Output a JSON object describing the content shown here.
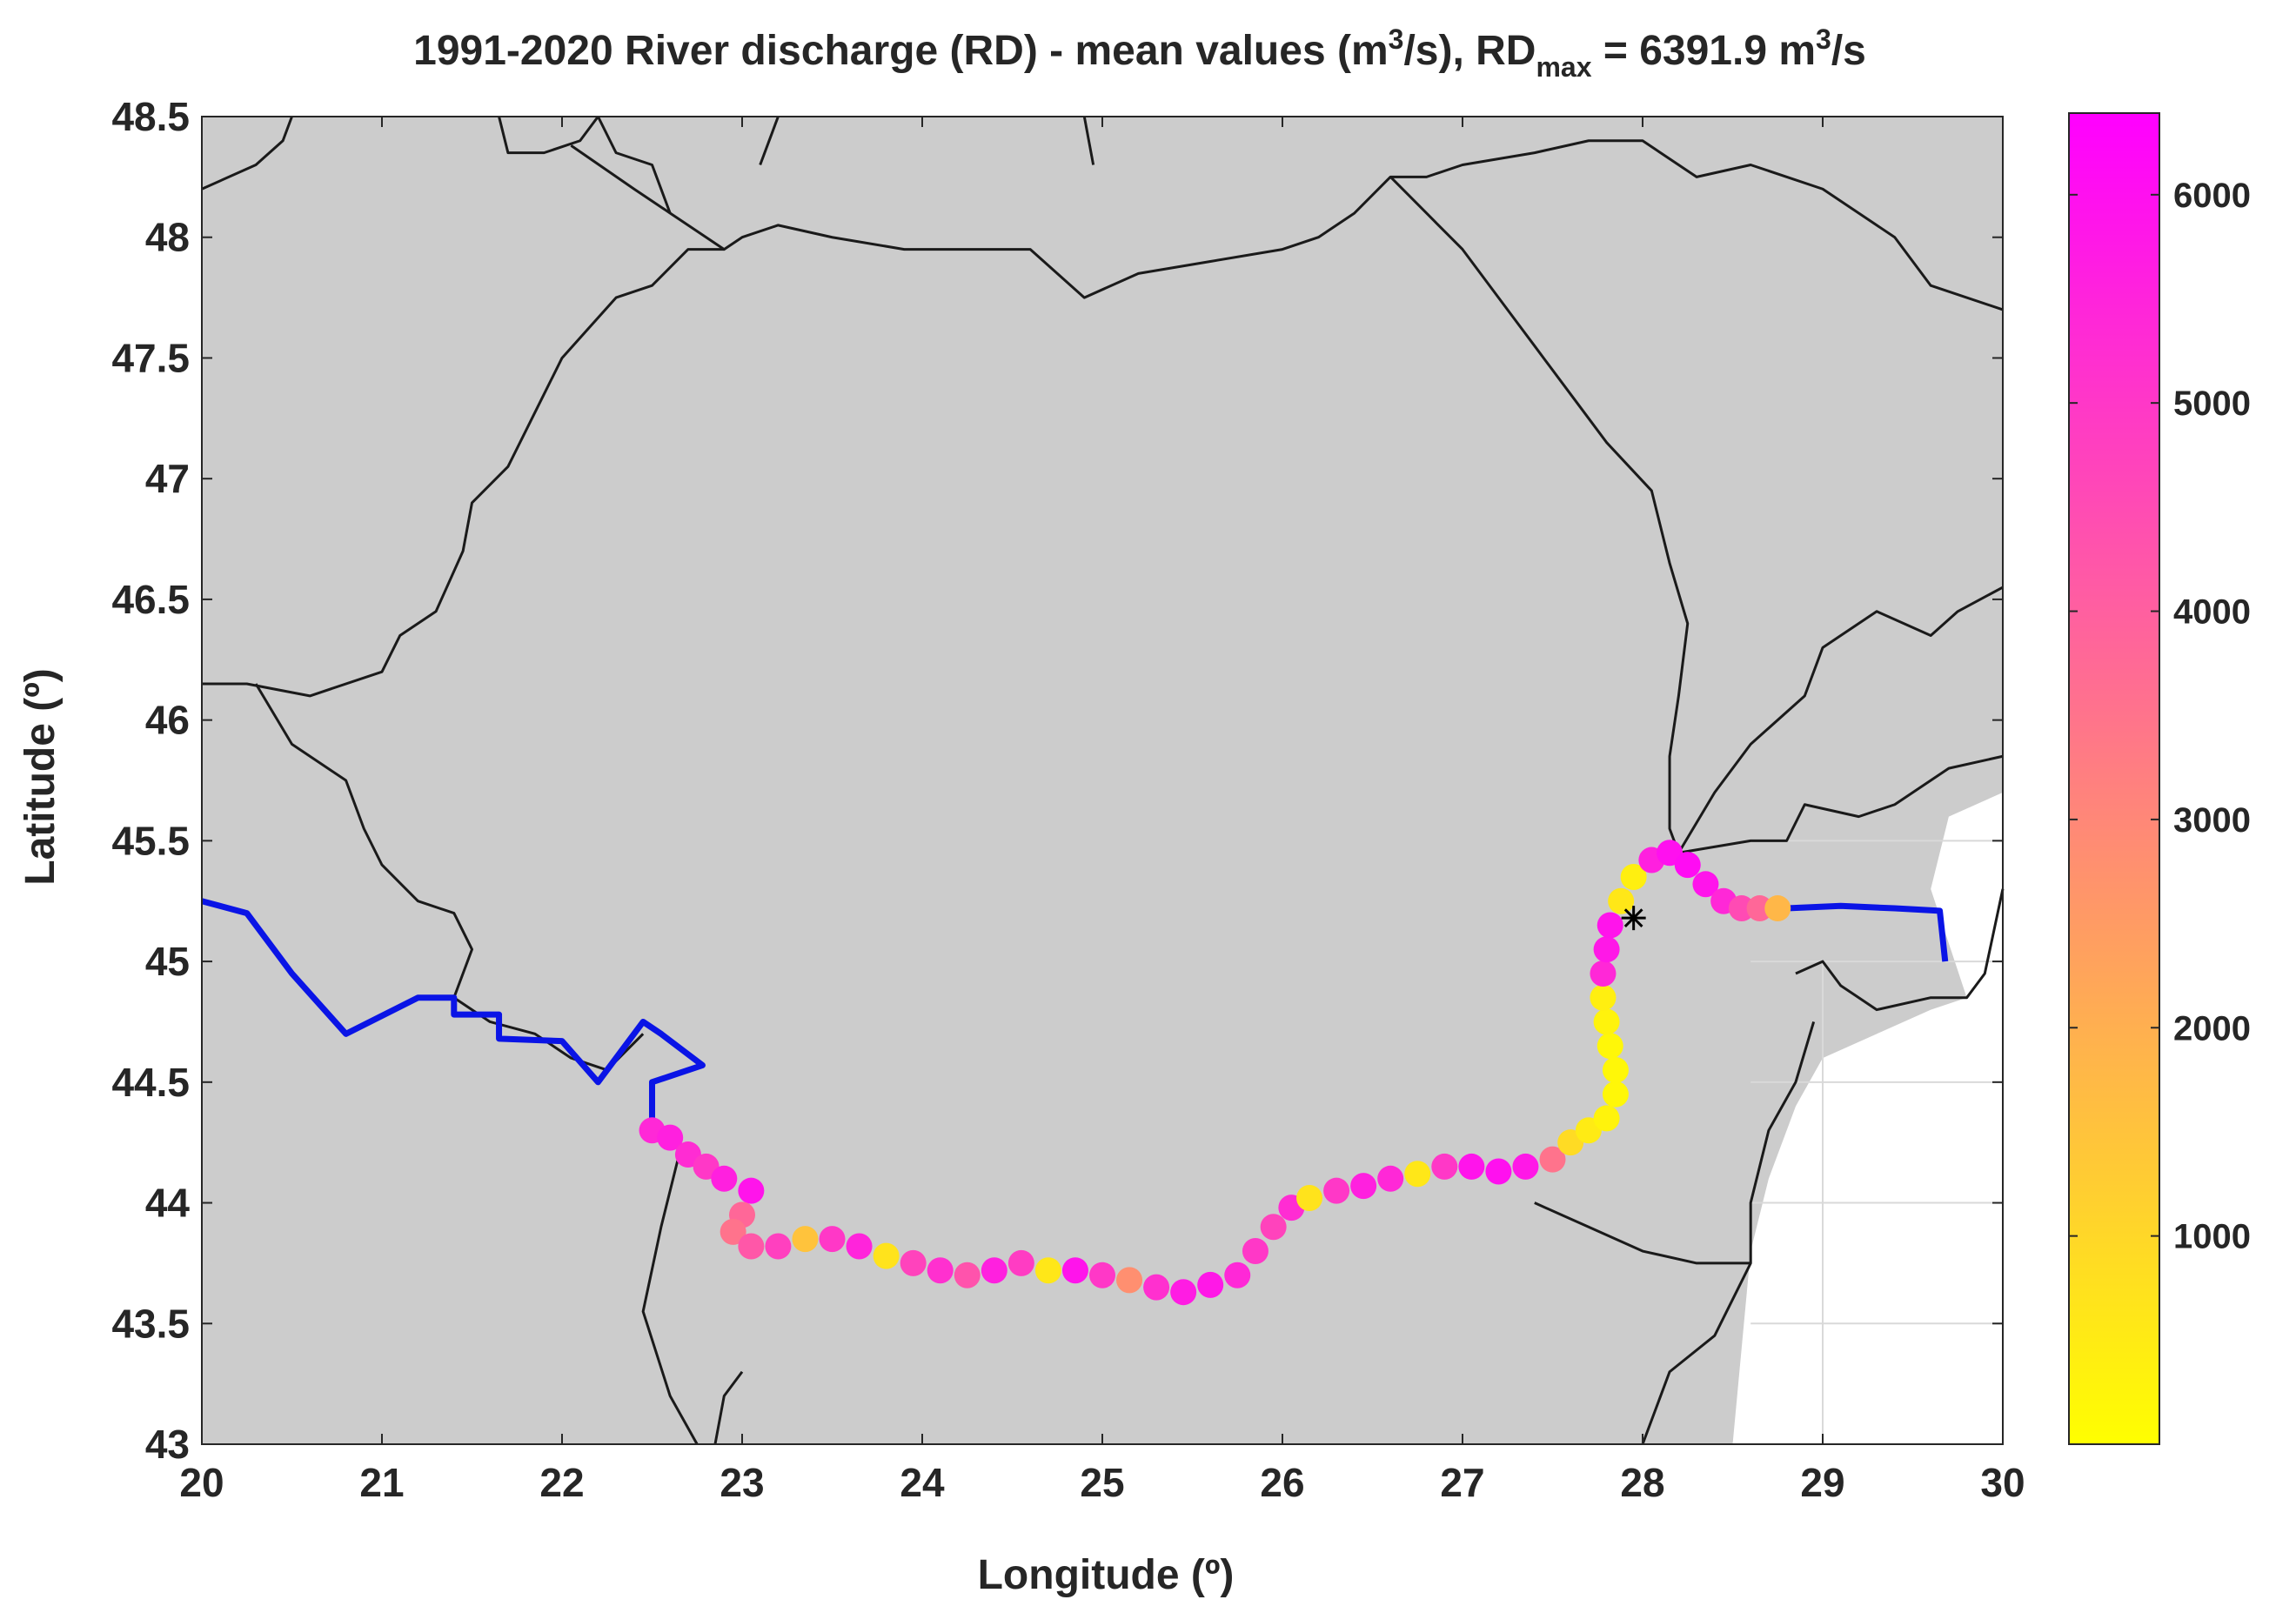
{
  "title": {
    "main": "1991-2020 River discharge (RD) - mean values (m",
    "sup1": "3",
    "mid": "/s), RD",
    "sub": "max",
    "eq": " = 6391.9 m",
    "sup2": "3",
    "tail": "/s"
  },
  "colors": {
    "land": "#cccccc",
    "sea": "#ffffff",
    "border": "#1a1a1a",
    "river_no_data": "#0a14e6",
    "axis_text": "#262626",
    "colormap_low": "#ffff00",
    "colormap_high": "#ff00ff"
  },
  "chart_data": {
    "type": "scatter",
    "xlabel": "Longitude (º)",
    "ylabel": "Latitude (º)",
    "xlim": [
      20,
      30
    ],
    "ylim": [
      43,
      48.5
    ],
    "xticks": [
      "20",
      "21",
      "22",
      "23",
      "24",
      "25",
      "26",
      "27",
      "28",
      "29",
      "30"
    ],
    "yticks": [
      "43",
      "43.5",
      "44",
      "44.5",
      "45",
      "45.5",
      "46",
      "46.5",
      "47",
      "47.5",
      "48",
      "48.5"
    ],
    "colorbar": {
      "min": 0,
      "max": 6391.9,
      "ticks": [
        1000,
        2000,
        3000,
        4000,
        5000,
        6000
      ],
      "ticklabels": [
        "1000",
        "2000",
        "3000",
        "4000",
        "5000",
        "6000"
      ]
    },
    "marker": {
      "symbol": "asterisk",
      "lon": 27.95,
      "lat": 45.18
    },
    "borders": [
      [
        [
          20.0,
          48.2
        ],
        [
          20.3,
          48.3
        ],
        [
          20.45,
          48.4
        ],
        [
          20.5,
          48.5
        ]
      ],
      [
        [
          21.65,
          48.5
        ],
        [
          21.7,
          48.35
        ],
        [
          21.9,
          48.35
        ],
        [
          22.1,
          48.4
        ],
        [
          22.2,
          48.5
        ]
      ],
      [
        [
          22.05,
          48.38
        ],
        [
          22.4,
          48.2
        ],
        [
          22.6,
          48.1
        ],
        [
          22.9,
          47.95
        ],
        [
          23.0,
          48.0
        ],
        [
          23.2,
          48.05
        ],
        [
          23.5,
          48.0
        ],
        [
          23.9,
          47.95
        ],
        [
          24.2,
          47.95
        ],
        [
          24.6,
          47.95
        ],
        [
          24.9,
          47.75
        ],
        [
          25.2,
          47.85
        ],
        [
          25.6,
          47.9
        ],
        [
          26.0,
          47.95
        ],
        [
          26.2,
          48.0
        ],
        [
          26.4,
          48.1
        ],
        [
          26.6,
          48.25
        ],
        [
          26.8,
          48.25
        ],
        [
          27.0,
          48.3
        ],
        [
          27.4,
          48.35
        ],
        [
          27.7,
          48.4
        ],
        [
          28.0,
          48.4
        ],
        [
          28.3,
          48.25
        ],
        [
          28.6,
          48.3
        ],
        [
          29.0,
          48.2
        ],
        [
          29.4,
          48.0
        ],
        [
          29.6,
          47.8
        ],
        [
          30.0,
          47.7
        ]
      ],
      [
        [
          22.2,
          48.5
        ],
        [
          22.3,
          48.35
        ],
        [
          22.5,
          48.3
        ],
        [
          22.6,
          48.1
        ]
      ],
      [
        [
          26.6,
          48.25
        ],
        [
          26.8,
          48.1
        ],
        [
          27.0,
          47.95
        ],
        [
          27.2,
          47.75
        ],
        [
          27.4,
          47.55
        ],
        [
          27.6,
          47.35
        ],
        [
          27.8,
          47.15
        ],
        [
          28.05,
          46.95
        ],
        [
          28.15,
          46.65
        ],
        [
          28.25,
          46.4
        ],
        [
          28.2,
          46.1
        ],
        [
          28.15,
          45.85
        ],
        [
          28.15,
          45.55
        ],
        [
          28.2,
          45.45
        ]
      ],
      [
        [
          20.0,
          46.15
        ],
        [
          20.25,
          46.15
        ],
        [
          20.6,
          46.1
        ],
        [
          21.0,
          46.2
        ],
        [
          21.1,
          46.35
        ],
        [
          21.3,
          46.45
        ],
        [
          21.45,
          46.7
        ],
        [
          21.5,
          46.9
        ],
        [
          21.7,
          47.05
        ],
        [
          21.9,
          47.35
        ],
        [
          22.0,
          47.5
        ],
        [
          22.3,
          47.75
        ],
        [
          22.5,
          47.8
        ],
        [
          22.7,
          47.95
        ],
        [
          22.9,
          47.95
        ]
      ],
      [
        [
          20.3,
          46.15
        ],
        [
          20.5,
          45.9
        ],
        [
          20.8,
          45.75
        ],
        [
          20.9,
          45.55
        ],
        [
          21.0,
          45.4
        ],
        [
          21.2,
          45.25
        ],
        [
          21.4,
          45.2
        ],
        [
          21.5,
          45.05
        ],
        [
          21.4,
          44.85
        ],
        [
          21.6,
          44.75
        ],
        [
          21.85,
          44.7
        ],
        [
          22.05,
          44.6
        ],
        [
          22.25,
          44.55
        ],
        [
          22.45,
          44.7
        ]
      ],
      [
        [
          23.2,
          48.5
        ],
        [
          23.1,
          48.3
        ]
      ],
      [
        [
          24.9,
          48.5
        ],
        [
          24.95,
          48.3
        ]
      ],
      [
        [
          28.2,
          45.45
        ],
        [
          28.6,
          45.5
        ],
        [
          28.8,
          45.5
        ],
        [
          28.9,
          45.65
        ],
        [
          29.2,
          45.6
        ],
        [
          29.4,
          45.65
        ],
        [
          29.6,
          45.75
        ],
        [
          29.7,
          45.8
        ],
        [
          30.0,
          45.85
        ]
      ],
      [
        [
          28.2,
          45.45
        ],
        [
          28.4,
          45.7
        ],
        [
          28.6,
          45.9
        ],
        [
          28.9,
          46.1
        ],
        [
          29.0,
          46.3
        ],
        [
          29.3,
          46.45
        ],
        [
          29.6,
          46.35
        ],
        [
          29.75,
          46.45
        ],
        [
          30.0,
          46.55
        ]
      ],
      [
        [
          28.85,
          44.95
        ],
        [
          29.0,
          45.0
        ],
        [
          29.1,
          44.9
        ],
        [
          29.3,
          44.8
        ],
        [
          29.6,
          44.85
        ],
        [
          29.8,
          44.85
        ],
        [
          29.9,
          44.95
        ],
        [
          30.0,
          45.3
        ]
      ],
      [
        [
          28.95,
          44.75
        ],
        [
          28.85,
          44.5
        ],
        [
          28.7,
          44.3
        ],
        [
          28.6,
          44.0
        ],
        [
          28.6,
          43.75
        ],
        [
          28.4,
          43.45
        ],
        [
          28.15,
          43.3
        ],
        [
          28.0,
          43.0
        ]
      ],
      [
        [
          27.4,
          44.0
        ],
        [
          27.7,
          43.9
        ],
        [
          28.0,
          43.8
        ],
        [
          28.3,
          43.75
        ],
        [
          28.6,
          43.75
        ]
      ],
      [
        [
          22.65,
          44.2
        ],
        [
          22.55,
          43.9
        ],
        [
          22.45,
          43.55
        ],
        [
          22.6,
          43.2
        ],
        [
          22.75,
          43.0
        ]
      ],
      [
        [
          23.0,
          43.3
        ],
        [
          22.9,
          43.2
        ],
        [
          22.85,
          43.0
        ]
      ]
    ],
    "river_no_data_series": [
      [
        [
          20.0,
          45.25
        ],
        [
          20.25,
          45.2
        ],
        [
          20.5,
          44.95
        ],
        [
          20.8,
          44.7
        ],
        [
          21.2,
          44.85
        ],
        [
          21.4,
          44.85
        ],
        [
          21.4,
          44.78
        ],
        [
          21.65,
          44.78
        ],
        [
          21.65,
          44.68
        ],
        [
          22.0,
          44.67
        ],
        [
          22.2,
          44.5
        ],
        [
          22.45,
          44.75
        ],
        [
          22.55,
          44.7
        ],
        [
          22.78,
          44.57
        ],
        [
          22.5,
          44.5
        ],
        [
          22.5,
          44.3
        ]
      ],
      [
        [
          28.8,
          45.22
        ],
        [
          29.1,
          45.23
        ],
        [
          29.4,
          45.22
        ],
        [
          29.65,
          45.21
        ],
        [
          29.68,
          45.0
        ]
      ]
    ],
    "river_points": [
      [
        22.5,
        44.3,
        5400
      ],
      [
        22.6,
        44.27,
        5600
      ],
      [
        22.7,
        44.2,
        5300
      ],
      [
        22.8,
        44.15,
        5000
      ],
      [
        22.9,
        44.1,
        5600
      ],
      [
        23.05,
        44.05,
        5900
      ],
      [
        23.0,
        43.95,
        3800
      ],
      [
        22.95,
        43.88,
        3500
      ],
      [
        23.05,
        43.82,
        4200
      ],
      [
        23.2,
        43.82,
        4800
      ],
      [
        23.35,
        43.85,
        1500
      ],
      [
        23.5,
        43.85,
        5000
      ],
      [
        23.65,
        43.82,
        5500
      ],
      [
        23.8,
        43.78,
        700
      ],
      [
        23.95,
        43.75,
        4700
      ],
      [
        24.1,
        43.72,
        5200
      ],
      [
        24.25,
        43.7,
        4300
      ],
      [
        24.4,
        43.72,
        5600
      ],
      [
        24.55,
        43.75,
        4900
      ],
      [
        24.7,
        43.72,
        600
      ],
      [
        24.85,
        43.72,
        5900
      ],
      [
        25.0,
        43.7,
        5000
      ],
      [
        25.15,
        43.68,
        2800
      ],
      [
        25.3,
        43.65,
        5200
      ],
      [
        25.45,
        43.63,
        5700
      ],
      [
        25.6,
        43.66,
        5800
      ],
      [
        25.75,
        43.7,
        5400
      ],
      [
        25.85,
        43.8,
        5000
      ],
      [
        25.95,
        43.9,
        4700
      ],
      [
        26.05,
        43.98,
        5300
      ],
      [
        26.15,
        44.02,
        700
      ],
      [
        26.3,
        44.05,
        5000
      ],
      [
        26.45,
        44.07,
        5600
      ],
      [
        26.6,
        44.1,
        5400
      ],
      [
        26.75,
        44.12,
        600
      ],
      [
        26.9,
        44.15,
        5000
      ],
      [
        27.05,
        44.15,
        5900
      ],
      [
        27.2,
        44.13,
        6000
      ],
      [
        27.35,
        44.15,
        5800
      ],
      [
        27.5,
        44.18,
        3500
      ],
      [
        27.6,
        44.25,
        900
      ],
      [
        27.7,
        44.3,
        500
      ],
      [
        27.8,
        44.35,
        300
      ],
      [
        27.85,
        44.45,
        200
      ],
      [
        27.85,
        44.55,
        200
      ],
      [
        27.82,
        44.65,
        200
      ],
      [
        27.8,
        44.75,
        300
      ],
      [
        27.78,
        44.85,
        400
      ],
      [
        27.78,
        44.95,
        5400
      ],
      [
        27.8,
        45.05,
        5800
      ],
      [
        27.82,
        45.15,
        5900
      ],
      [
        27.88,
        45.25,
        600
      ],
      [
        27.95,
        45.35,
        400
      ],
      [
        28.05,
        45.42,
        5600
      ],
      [
        28.15,
        45.45,
        6000
      ],
      [
        28.25,
        45.4,
        6100
      ],
      [
        28.35,
        45.32,
        5900
      ],
      [
        28.45,
        45.25,
        5400
      ],
      [
        28.55,
        45.22,
        4500
      ],
      [
        28.65,
        45.22,
        3800
      ],
      [
        28.75,
        45.22,
        1800
      ]
    ]
  }
}
